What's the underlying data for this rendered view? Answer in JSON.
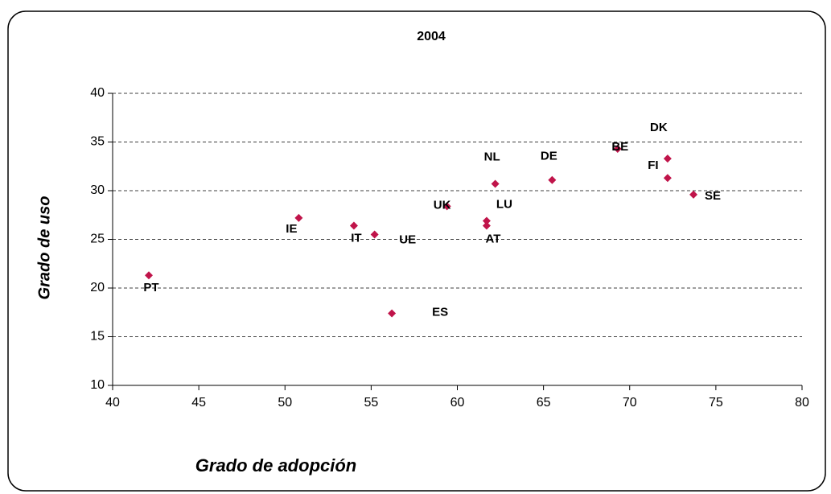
{
  "chart_data": {
    "type": "scatter",
    "title": "2004",
    "x_label": "Grado de adopción",
    "y_label": "Grado de uso",
    "series": [
      {
        "color": "#c0144a",
        "labels": [
          "PT",
          "IE",
          "IT",
          "UE",
          "ES",
          "UK",
          "LU",
          "AT",
          "NL",
          "DE",
          "BE",
          "DK",
          "FI",
          "SE"
        ],
        "x": [
          42.1,
          50.8,
          54.0,
          55.2,
          56.2,
          59.4,
          61.7,
          61.7,
          62.2,
          65.5,
          69.3,
          72.2,
          72.2,
          73.7
        ],
        "values": [
          21.3,
          27.2,
          26.4,
          25.5,
          17.4,
          28.4,
          26.9,
          26.4,
          30.7,
          31.1,
          34.3,
          33.3,
          31.3,
          29.6
        ]
      }
    ],
    "xlim": [
      40,
      80
    ],
    "xticks": [
      40,
      45,
      50,
      55,
      60,
      65,
      70,
      75,
      80
    ],
    "ylim": [
      10,
      40
    ],
    "yticks": [
      10,
      15,
      20,
      25,
      30,
      35,
      40
    ],
    "grid": true
  }
}
